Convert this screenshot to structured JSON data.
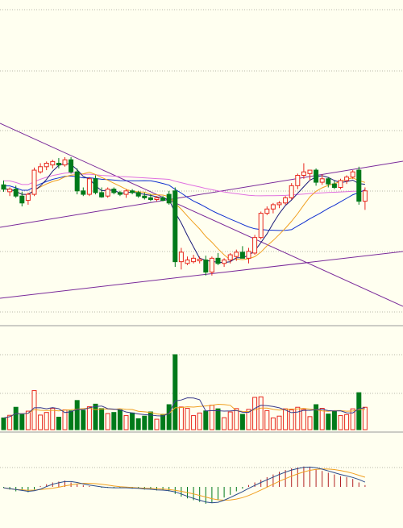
{
  "colors": {
    "background": "#fffff0",
    "grid": "#b8b8a8",
    "panel_divider": "#9a9a9a",
    "up": "#e8281e",
    "down": "#007a1a",
    "ma5": "#1b1b7a",
    "ma10": "#f0a020",
    "ma20": "#1030d0",
    "ma60": "#e070e0",
    "trendline": "#7a2a9a",
    "volume_ma5": "#3a3a8a",
    "volume_ma10": "#f0a020",
    "macd_dif": "#2a4a8a",
    "macd_dea": "#f0a020",
    "macd_hist": "#b22222"
  },
  "chart_data": [
    {
      "type": "candlestick",
      "panel": "price",
      "grid": true,
      "candles": [
        {
          "o": 33,
          "h": 38,
          "l": 25,
          "c": 28
        },
        {
          "o": 25,
          "h": 30,
          "l": 20,
          "c": 28
        },
        {
          "o": 28,
          "h": 32,
          "l": 18,
          "c": 20
        },
        {
          "o": 20,
          "h": 25,
          "l": 8,
          "c": 12
        },
        {
          "o": 15,
          "h": 24,
          "l": 10,
          "c": 22
        },
        {
          "o": 22,
          "h": 53,
          "l": 20,
          "c": 50
        },
        {
          "o": 48,
          "h": 58,
          "l": 46,
          "c": 54
        },
        {
          "o": 54,
          "h": 60,
          "l": 50,
          "c": 58
        },
        {
          "o": 56,
          "h": 62,
          "l": 52,
          "c": 60
        },
        {
          "o": 58,
          "h": 64,
          "l": 52,
          "c": 56
        },
        {
          "o": 56,
          "h": 65,
          "l": 54,
          "c": 62
        },
        {
          "o": 62,
          "h": 65,
          "l": 46,
          "c": 48
        },
        {
          "o": 48,
          "h": 52,
          "l": 22,
          "c": 26
        },
        {
          "o": 26,
          "h": 30,
          "l": 20,
          "c": 22
        },
        {
          "o": 22,
          "h": 42,
          "l": 20,
          "c": 40
        },
        {
          "o": 40,
          "h": 44,
          "l": 22,
          "c": 24
        },
        {
          "o": 24,
          "h": 30,
          "l": 18,
          "c": 19
        },
        {
          "o": 20,
          "h": 30,
          "l": 18,
          "c": 28
        },
        {
          "o": 28,
          "h": 30,
          "l": 22,
          "c": 24
        },
        {
          "o": 24,
          "h": 26,
          "l": 20,
          "c": 22
        },
        {
          "o": 22,
          "h": 28,
          "l": 18,
          "c": 26
        },
        {
          "o": 26,
          "h": 28,
          "l": 22,
          "c": 24
        },
        {
          "o": 24,
          "h": 26,
          "l": 18,
          "c": 20
        },
        {
          "o": 20,
          "h": 24,
          "l": 16,
          "c": 18
        },
        {
          "o": 18,
          "h": 22,
          "l": 14,
          "c": 16
        },
        {
          "o": 16,
          "h": 20,
          "l": 14,
          "c": 18
        },
        {
          "o": 18,
          "h": 20,
          "l": 14,
          "c": 15
        },
        {
          "o": 22,
          "h": 26,
          "l": 10,
          "c": 12
        },
        {
          "o": 26,
          "h": 30,
          "l": -62,
          "c": -56
        },
        {
          "o": -56,
          "h": -40,
          "l": -65,
          "c": -45
        },
        {
          "o": -58,
          "h": -50,
          "l": -60,
          "c": -54
        },
        {
          "o": -56,
          "h": -48,
          "l": -58,
          "c": -52
        },
        {
          "o": -55,
          "h": -50,
          "l": -58,
          "c": -53
        },
        {
          "o": -54,
          "h": -49,
          "l": -72,
          "c": -68
        },
        {
          "o": -68,
          "h": -50,
          "l": -72,
          "c": -52
        },
        {
          "o": -52,
          "h": -46,
          "l": -60,
          "c": -58
        },
        {
          "o": -58,
          "h": -52,
          "l": -62,
          "c": -54
        },
        {
          "o": -54,
          "h": -46,
          "l": -58,
          "c": -48
        },
        {
          "o": -50,
          "h": -42,
          "l": -55,
          "c": -45
        },
        {
          "o": -45,
          "h": -38,
          "l": -52,
          "c": -52
        },
        {
          "o": -52,
          "h": -40,
          "l": -58,
          "c": -44
        },
        {
          "o": -46,
          "h": -25,
          "l": -48,
          "c": -28
        },
        {
          "o": -28,
          "h": 2,
          "l": -30,
          "c": 0
        },
        {
          "o": 0,
          "h": 8,
          "l": -2,
          "c": 5
        },
        {
          "o": 5,
          "h": 12,
          "l": 0,
          "c": 10
        },
        {
          "o": 10,
          "h": 14,
          "l": 6,
          "c": 12
        },
        {
          "o": 12,
          "h": 20,
          "l": 10,
          "c": 18
        },
        {
          "o": 18,
          "h": 35,
          "l": 16,
          "c": 32
        },
        {
          "o": 32,
          "h": 46,
          "l": 28,
          "c": 44
        },
        {
          "o": 44,
          "h": 58,
          "l": 40,
          "c": 48
        },
        {
          "o": 46,
          "h": 50,
          "l": 38,
          "c": 50
        },
        {
          "o": 50,
          "h": 52,
          "l": 32,
          "c": 36
        },
        {
          "o": 36,
          "h": 45,
          "l": 33,
          "c": 40
        },
        {
          "o": 40,
          "h": 42,
          "l": 30,
          "c": 34
        },
        {
          "o": 34,
          "h": 38,
          "l": 28,
          "c": 30
        },
        {
          "o": 30,
          "h": 40,
          "l": 28,
          "c": 38
        },
        {
          "o": 38,
          "h": 44,
          "l": 34,
          "c": 42
        },
        {
          "o": 42,
          "h": 50,
          "l": 40,
          "c": 48
        },
        {
          "o": 50,
          "h": 54,
          "l": 10,
          "c": 14
        },
        {
          "o": 14,
          "h": 30,
          "l": 4,
          "c": 26
        }
      ]
    },
    {
      "type": "bar",
      "panel": "volume",
      "grid": true
    },
    {
      "type": "bar",
      "panel": "macd",
      "series": [
        {
          "values": [
            -1,
            -3,
            -5,
            -4,
            -6,
            -3,
            1,
            3,
            5,
            6,
            7,
            5,
            3,
            2,
            1,
            0,
            -1,
            -1,
            -1,
            -1,
            -1,
            -2,
            -2,
            -3,
            -3,
            -4,
            -4,
            -5,
            -8,
            -11,
            -13,
            -15,
            -17,
            -19,
            -18,
            -15,
            -12,
            -9,
            -5,
            -2,
            2,
            5,
            8,
            11,
            14,
            17,
            19,
            21,
            22,
            23,
            22,
            20,
            18,
            16,
            14,
            12,
            11,
            9,
            5,
            2
          ]
        }
      ]
    }
  ]
}
